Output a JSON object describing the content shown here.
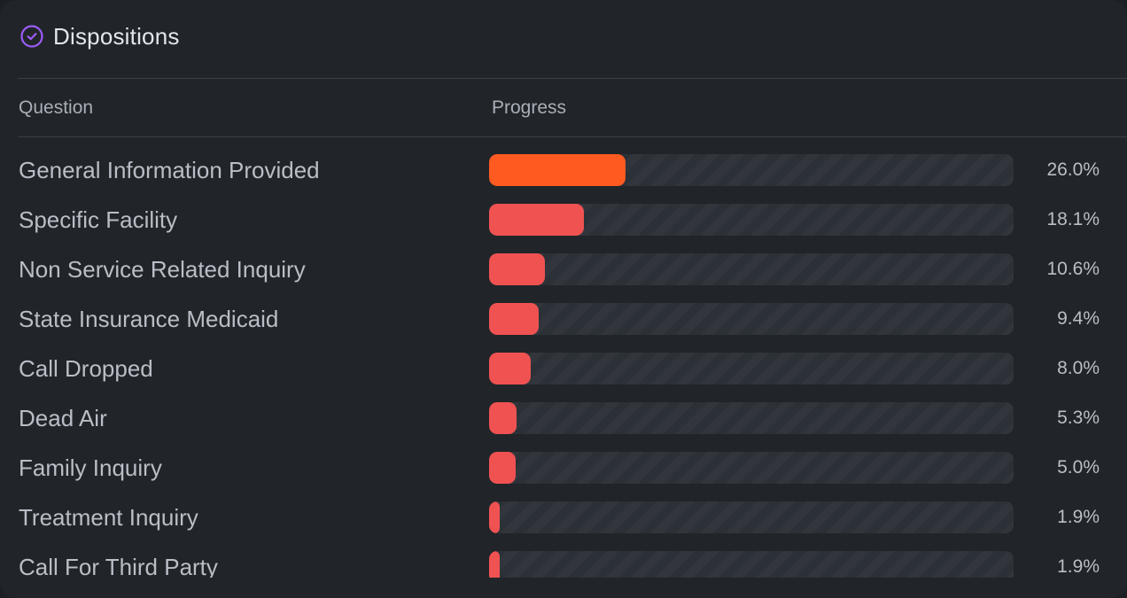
{
  "panel": {
    "title": "Dispositions",
    "icon": "check-circle-icon",
    "accent_color": "#9b5cf6"
  },
  "table": {
    "columns": {
      "question": "Question",
      "progress": "Progress"
    },
    "rows": [
      {
        "question": "General Information Provided",
        "percent_label": "26.0%",
        "percent": 26.0,
        "color": "#ff5a1f"
      },
      {
        "question": "Specific Facility",
        "percent_label": "18.1%",
        "percent": 18.1,
        "color": "#f05252"
      },
      {
        "question": "Non Service Related Inquiry",
        "percent_label": "10.6%",
        "percent": 10.6,
        "color": "#f05252"
      },
      {
        "question": "State Insurance Medicaid",
        "percent_label": "9.4%",
        "percent": 9.4,
        "color": "#f05252"
      },
      {
        "question": "Call Dropped",
        "percent_label": "8.0%",
        "percent": 8.0,
        "color": "#f05252"
      },
      {
        "question": "Dead Air",
        "percent_label": "5.3%",
        "percent": 5.3,
        "color": "#f05252"
      },
      {
        "question": "Family Inquiry",
        "percent_label": "5.0%",
        "percent": 5.0,
        "color": "#f05252"
      },
      {
        "question": "Treatment Inquiry",
        "percent_label": "1.9%",
        "percent": 1.9,
        "color": "#f05252"
      },
      {
        "question": "Call For Third Party",
        "percent_label": "1.9%",
        "percent": 1.9,
        "color": "#f05252"
      }
    ]
  }
}
